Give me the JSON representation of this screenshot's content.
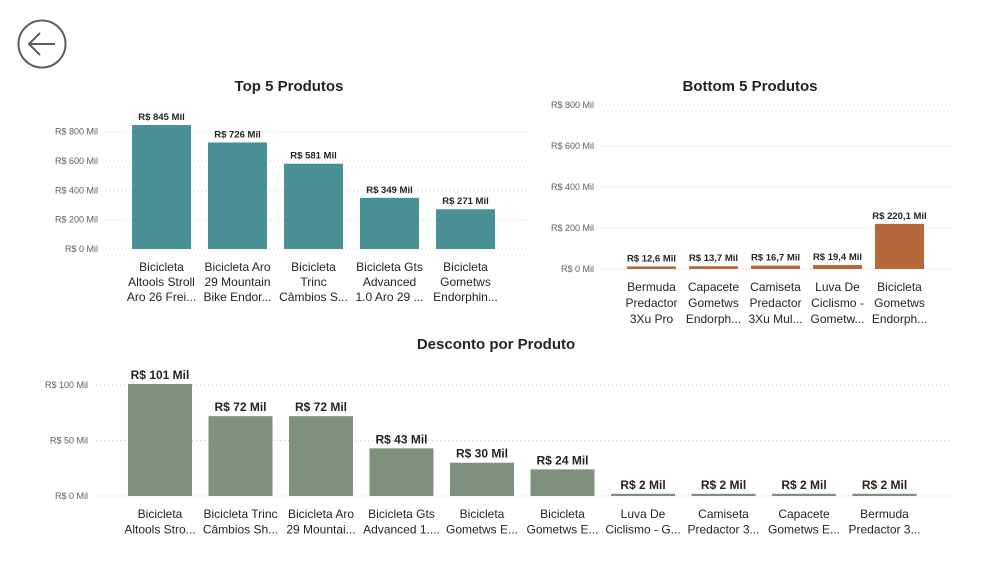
{
  "back_button": {
    "icon": "arrow-left-icon"
  },
  "colors": {
    "top": "#4a9196",
    "bottom": "#b5693a",
    "discount": "#7d917d"
  },
  "chart_data": [
    {
      "type": "bar",
      "id": "top5",
      "title": "Top 5 Produtos",
      "categories": [
        [
          "Bicicleta",
          "Altools Stroll",
          "Aro 26 Frei..."
        ],
        [
          "Bicicleta Aro",
          "29 Mountain",
          "Bike Endor..."
        ],
        [
          "Bicicleta",
          "Trinc",
          "Câmbios S..."
        ],
        [
          "Bicicleta Gts",
          "Advanced",
          "1.0 Aro 29 ..."
        ],
        [
          "Bicicleta",
          "Gometws",
          "Endorphin..."
        ]
      ],
      "values": [
        845,
        726,
        581,
        349,
        271
      ],
      "data_labels": [
        "R$ 845 Mil",
        "R$ 726 Mil",
        "R$ 581 Mil",
        "R$ 349 Mil",
        "R$ 271 Mil"
      ],
      "y_ticks": [
        0,
        200,
        400,
        600,
        800
      ],
      "y_tick_labels": [
        "R$ 0 Mil",
        "R$ 200 Mil",
        "R$ 400 Mil",
        "R$ 600 Mil",
        "R$ 800 Mil"
      ],
      "ylim": [
        0,
        845
      ],
      "grid": true
    },
    {
      "type": "bar",
      "id": "bottom5",
      "title": "Bottom 5 Produtos",
      "categories": [
        [
          "Bermuda",
          "Predactor",
          "3Xu Pro"
        ],
        [
          "Capacete",
          "Gometws",
          "Endorph..."
        ],
        [
          "Camiseta",
          "Predactor",
          "3Xu Mul..."
        ],
        [
          "Luva De",
          "Ciclismo -",
          "Gometw..."
        ],
        [
          "Bicicleta",
          "Gometws",
          "Endorph..."
        ]
      ],
      "values": [
        12.6,
        13.7,
        16.7,
        19.4,
        220.1
      ],
      "data_labels": [
        "R$ 12,6 Mil",
        "R$ 13,7 Mil",
        "R$ 16,7 Mil",
        "R$ 19,4 Mil",
        "R$ 220,1 Mil"
      ],
      "y_ticks": [
        0,
        200,
        400,
        600,
        800
      ],
      "y_tick_labels": [
        "R$ 0 Mil",
        "R$ 200 Mil",
        "R$ 400 Mil",
        "R$ 600 Mil",
        "R$ 800 Mil"
      ],
      "ylim": [
        0,
        800
      ],
      "grid": true
    },
    {
      "type": "bar",
      "id": "desconto",
      "title": "Desconto por Produto",
      "categories": [
        [
          "Bicicleta",
          "Altools Stro..."
        ],
        [
          "Bicicleta Trinc",
          "Câmbios Sh..."
        ],
        [
          "Bicicleta Aro",
          "29 Mountai..."
        ],
        [
          "Bicicleta Gts",
          "Advanced 1...."
        ],
        [
          "Bicicleta",
          "Gometws E..."
        ],
        [
          "Bicicleta",
          "Gometws E..."
        ],
        [
          "Luva De",
          "Ciclismo - G..."
        ],
        [
          "Camiseta",
          "Predactor 3..."
        ],
        [
          "Capacete",
          "Gometws E..."
        ],
        [
          "Bermuda",
          "Predactor 3..."
        ]
      ],
      "values": [
        101,
        72,
        72,
        43,
        30,
        24,
        2,
        2,
        2,
        2
      ],
      "data_labels": [
        "R$ 101 Mil",
        "R$ 72 Mil",
        "R$ 72 Mil",
        "R$ 43 Mil",
        "R$ 30 Mil",
        "R$ 24 Mil",
        "R$ 2 Mil",
        "R$ 2 Mil",
        "R$ 2 Mil",
        "R$ 2 Mil"
      ],
      "y_ticks": [
        0,
        50,
        100
      ],
      "y_tick_labels": [
        "R$ 0 Mil",
        "R$ 50 Mil",
        "R$ 100 Mil"
      ],
      "ylim": [
        0,
        101
      ],
      "grid": true
    }
  ]
}
